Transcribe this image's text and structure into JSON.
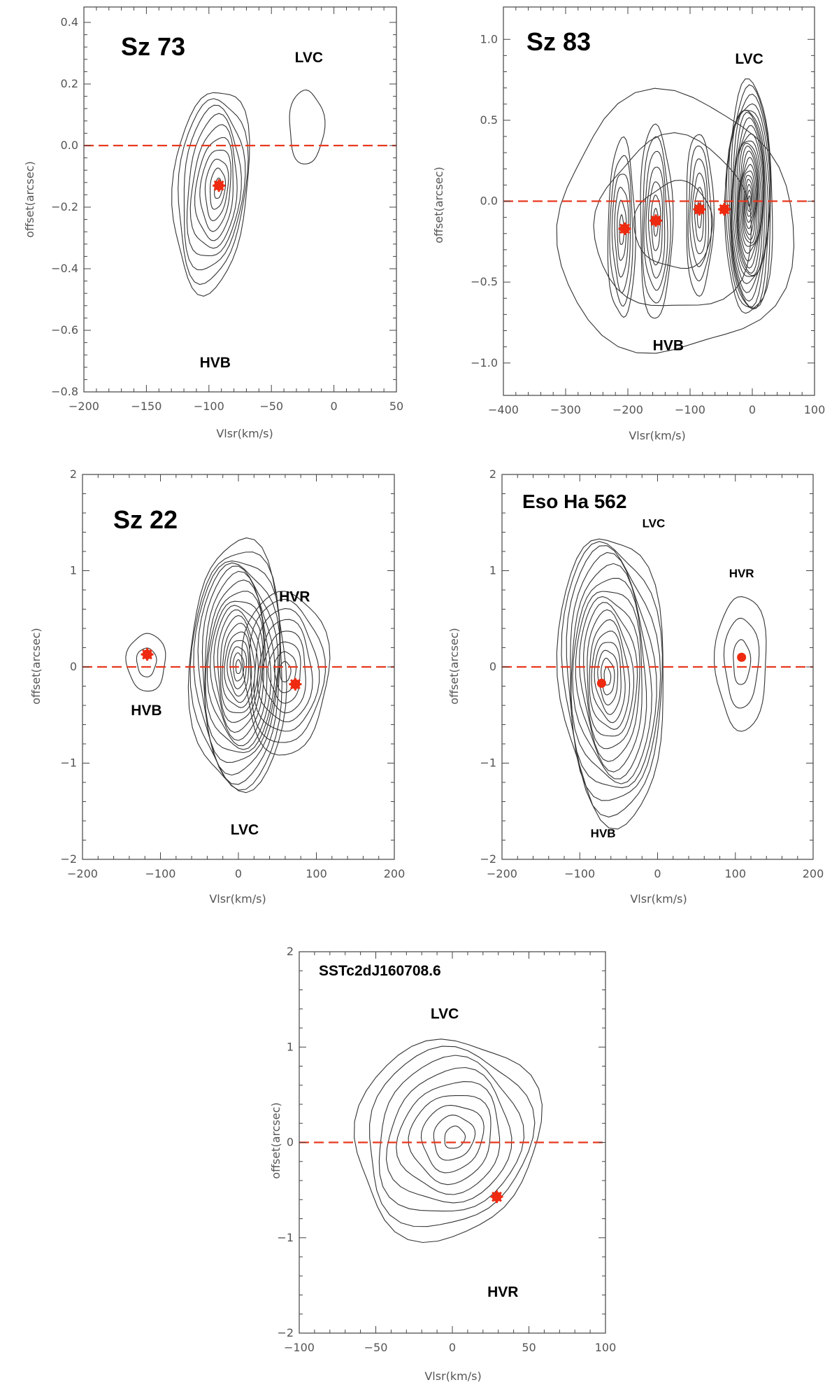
{
  "chart_data": [
    {
      "type": "contour",
      "title": "Sz 73",
      "xlabel": "Vlsr(km/s)",
      "ylabel": "offset(arcsec)",
      "xlim": [
        -200,
        50
      ],
      "ylim": [
        -0.8,
        0.45
      ],
      "xticks": [
        -200,
        -150,
        -100,
        -50,
        0,
        50
      ],
      "xtick_labels": [
        "−200",
        "−150",
        "−100",
        "−50",
        "0",
        "50"
      ],
      "yticks": [
        -0.8,
        -0.6,
        -0.4,
        -0.2,
        0.0,
        0.2,
        0.4
      ],
      "ytick_labels": [
        "−0.8",
        "−0.6",
        "−0.4",
        "−0.2",
        "0.0",
        "0.2",
        "0.4"
      ],
      "reference_line_y": 0.0,
      "peaks": [
        {
          "x": -92,
          "y": -0.13,
          "marker": "asterisk"
        }
      ],
      "components": [
        {
          "label": "LVC",
          "x": -20,
          "y": 0.27
        },
        {
          "label": "HVB",
          "x": -95,
          "y": -0.72
        }
      ],
      "contour_groups": [
        {
          "cx": -92,
          "cy": -0.14,
          "rx": 30,
          "ry": 0.33,
          "count": 10,
          "skew": -0.3
        },
        {
          "cx": -22,
          "cy": 0.06,
          "rx": 14,
          "ry": 0.12,
          "count": 1,
          "skew": 0
        }
      ]
    },
    {
      "type": "contour",
      "title": "Sz 83",
      "xlabel": "Vlsr(km/s)",
      "ylabel": "offset(arcsec)",
      "xlim": [
        -400,
        100
      ],
      "ylim": [
        -1.2,
        1.2
      ],
      "xticks": [
        -400,
        -300,
        -200,
        -100,
        0,
        100
      ],
      "xtick_labels": [
        "−400",
        "−300",
        "−200",
        "−100",
        "0",
        "100"
      ],
      "yticks": [
        -1.0,
        -0.5,
        0.0,
        0.5,
        1.0
      ],
      "ytick_labels": [
        "−1.0",
        "−0.5",
        "0.0",
        "0.5",
        "1.0"
      ],
      "reference_line_y": 0.0,
      "peaks": [
        {
          "x": -205,
          "y": -0.17,
          "marker": "asterisk"
        },
        {
          "x": -155,
          "y": -0.12,
          "marker": "asterisk"
        },
        {
          "x": -85,
          "y": -0.05,
          "marker": "asterisk"
        },
        {
          "x": -45,
          "y": -0.05,
          "marker": "asterisk"
        }
      ],
      "components": [
        {
          "label": "LVC",
          "x": -5,
          "y": 0.85
        },
        {
          "label": "HVB",
          "x": -135,
          "y": -0.92
        }
      ],
      "contour_groups": [
        {
          "cx": -210,
          "cy": -0.18,
          "rx": 22,
          "ry": 0.55,
          "count": 6,
          "skew": 0
        },
        {
          "cx": -155,
          "cy": -0.13,
          "rx": 26,
          "ry": 0.6,
          "count": 7,
          "skew": 0
        },
        {
          "cx": -85,
          "cy": -0.08,
          "rx": 22,
          "ry": 0.5,
          "count": 6,
          "skew": 0
        },
        {
          "cx": -5,
          "cy": 0.0,
          "rx": 38,
          "ry": 0.72,
          "count": 22,
          "skew": 0
        },
        {
          "cx": -125,
          "cy": -0.15,
          "rx": 190,
          "ry": 0.8,
          "count": 3,
          "skew": 0
        }
      ]
    },
    {
      "type": "contour",
      "title": "Sz 22",
      "xlabel": "Vlsr(km/s)",
      "ylabel": "offset(arcsec)",
      "xlim": [
        -200,
        200
      ],
      "ylim": [
        -2,
        2
      ],
      "xticks": [
        -200,
        -100,
        0,
        100,
        200
      ],
      "xtick_labels": [
        "−200",
        "−100",
        "0",
        "100",
        "200"
      ],
      "yticks": [
        -2,
        -1,
        0,
        1,
        2
      ],
      "ytick_labels": [
        "−2",
        "−1",
        "0",
        "1",
        "2"
      ],
      "reference_line_y": 0.0,
      "peaks": [
        {
          "x": -117,
          "y": 0.13,
          "marker": "asterisk"
        },
        {
          "x": 73,
          "y": -0.18,
          "marker": "asterisk"
        }
      ],
      "components": [
        {
          "label": "HVR",
          "x": 72,
          "y": 0.68
        },
        {
          "label": "HVB",
          "x": -118,
          "y": -0.5
        },
        {
          "label": "LVC",
          "x": 8,
          "y": -1.74
        }
      ],
      "contour_groups": [
        {
          "cx": 0,
          "cy": 0.0,
          "rx": 62,
          "ry": 1.3,
          "count": 18,
          "skew": 0
        },
        {
          "cx": 60,
          "cy": -0.05,
          "rx": 55,
          "ry": 0.85,
          "count": 8,
          "skew": 0
        },
        {
          "cx": -118,
          "cy": 0.05,
          "rx": 25,
          "ry": 0.3,
          "count": 2,
          "skew": 0
        }
      ]
    },
    {
      "type": "contour",
      "title": "Eso Ha 562",
      "xlabel": "Vlsr(km/s)",
      "ylabel": "offset(arcsec)",
      "xlim": [
        -200,
        200
      ],
      "ylim": [
        -2,
        2
      ],
      "xticks": [
        -200,
        -100,
        0,
        100,
        200
      ],
      "xtick_labels": [
        "−200",
        "−100",
        "0",
        "100",
        "200"
      ],
      "yticks": [
        -2,
        -1,
        0,
        1,
        2
      ],
      "ytick_labels": [
        "−2",
        "−1",
        "0",
        "1",
        "2"
      ],
      "reference_line_y": 0.0,
      "peaks": [
        {
          "x": -72,
          "y": -0.17,
          "marker": "dot"
        },
        {
          "x": 108,
          "y": 0.1,
          "marker": "dot"
        }
      ],
      "components": [
        {
          "label": "LVC",
          "x": -5,
          "y": 1.45
        },
        {
          "label": "HVR",
          "x": 108,
          "y": 0.93
        },
        {
          "label": "HVB",
          "x": -70,
          "y": -1.77
        }
      ],
      "contour_groups": [
        {
          "cx": -65,
          "cy": -0.1,
          "rx": 68,
          "ry": 1.5,
          "count": 16,
          "skew": 0.15
        },
        {
          "cx": 108,
          "cy": 0.05,
          "rx": 33,
          "ry": 0.7,
          "count": 3,
          "skew": 0
        }
      ]
    },
    {
      "type": "contour",
      "title": "SSTc2dJ160708.6",
      "xlabel": "Vlsr(km/s)",
      "ylabel": "offset(arcsec)",
      "xlim": [
        -100,
        100
      ],
      "ylim": [
        -2,
        2
      ],
      "xticks": [
        -100,
        -50,
        0,
        50,
        100
      ],
      "xtick_labels": [
        "−100",
        "−50",
        "0",
        "50",
        "100"
      ],
      "yticks": [
        -2,
        -1,
        0,
        1,
        2
      ],
      "ytick_labels": [
        "−2",
        "−1",
        "0",
        "1",
        "2"
      ],
      "reference_line_y": 0.0,
      "peaks": [
        {
          "x": 29,
          "y": -0.57,
          "marker": "asterisk"
        }
      ],
      "components": [
        {
          "label": "LVC",
          "x": -5,
          "y": 1.3
        },
        {
          "label": "HVR",
          "x": 33,
          "y": -1.62
        }
      ],
      "contour_groups": [
        {
          "cx": 2,
          "cy": 0.05,
          "rx": 60,
          "ry": 1.05,
          "count": 9,
          "skew": -0.35
        }
      ]
    }
  ]
}
